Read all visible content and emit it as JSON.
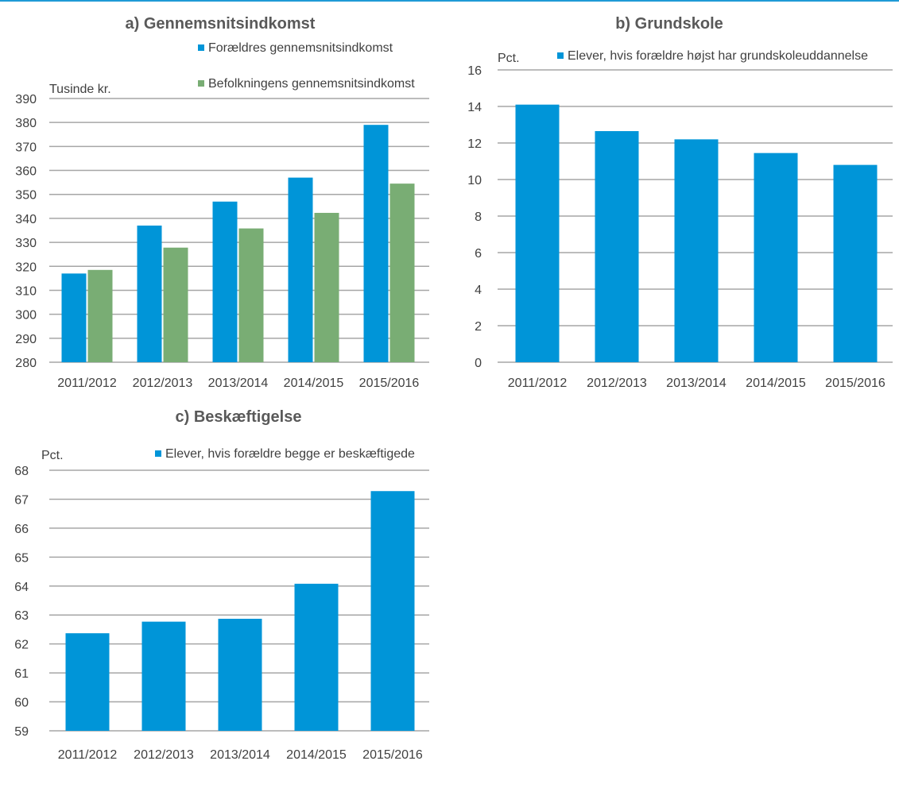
{
  "colors": {
    "blue": "#0095d8",
    "green": "#79ad74",
    "grid": "#a6a6a6"
  },
  "chart_data": [
    {
      "type": "bar",
      "title": "a) Gennemsnitsindkomst",
      "ylabel": "Tusinde kr.",
      "categories": [
        "2011/2012",
        "2012/2013",
        "2013/2014",
        "2014/2015",
        "2015/2016"
      ],
      "series": [
        {
          "name": "Forældres gennemsnitsindkomst",
          "color": "#0095d8",
          "values": [
            317,
            337,
            347,
            357,
            379
          ]
        },
        {
          "name": "Befolkningens gennemsnitsindkomst",
          "color": "#79ad74",
          "values": [
            318.5,
            327.8,
            335.8,
            342.3,
            354.5
          ]
        }
      ],
      "ylim": [
        280,
        390
      ],
      "yticks": [
        280,
        290,
        300,
        310,
        320,
        330,
        340,
        350,
        360,
        370,
        380,
        390
      ],
      "grid": true,
      "legend_position": "top-right"
    },
    {
      "type": "bar",
      "title": "b) Grundskole",
      "ylabel": "Pct.",
      "categories": [
        "2011/2012",
        "2012/2013",
        "2013/2014",
        "2014/2015",
        "2015/2016"
      ],
      "series": [
        {
          "name": "Elever, hvis forældre højst har grundskoleuddannelse",
          "color": "#0095d8",
          "values": [
            14.1,
            12.65,
            12.2,
            11.45,
            10.8
          ]
        }
      ],
      "ylim": [
        0,
        16
      ],
      "yticks": [
        0,
        2,
        4,
        6,
        8,
        10,
        12,
        14,
        16
      ],
      "grid": true,
      "legend_position": "top"
    },
    {
      "type": "bar",
      "title": "c) Beskæftigelse",
      "ylabel": "Pct.",
      "categories": [
        "2011/2012",
        "2012/2013",
        "2013/2014",
        "2014/2015",
        "2015/2016"
      ],
      "series": [
        {
          "name": "Elever, hvis forældre begge er beskæftigede",
          "color": "#0095d8",
          "values": [
            62.37,
            62.77,
            62.87,
            64.08,
            67.28
          ]
        }
      ],
      "ylim": [
        59,
        68
      ],
      "yticks": [
        59,
        60,
        61,
        62,
        63,
        64,
        65,
        66,
        67,
        68
      ],
      "grid": true,
      "legend_position": "top-right"
    }
  ]
}
